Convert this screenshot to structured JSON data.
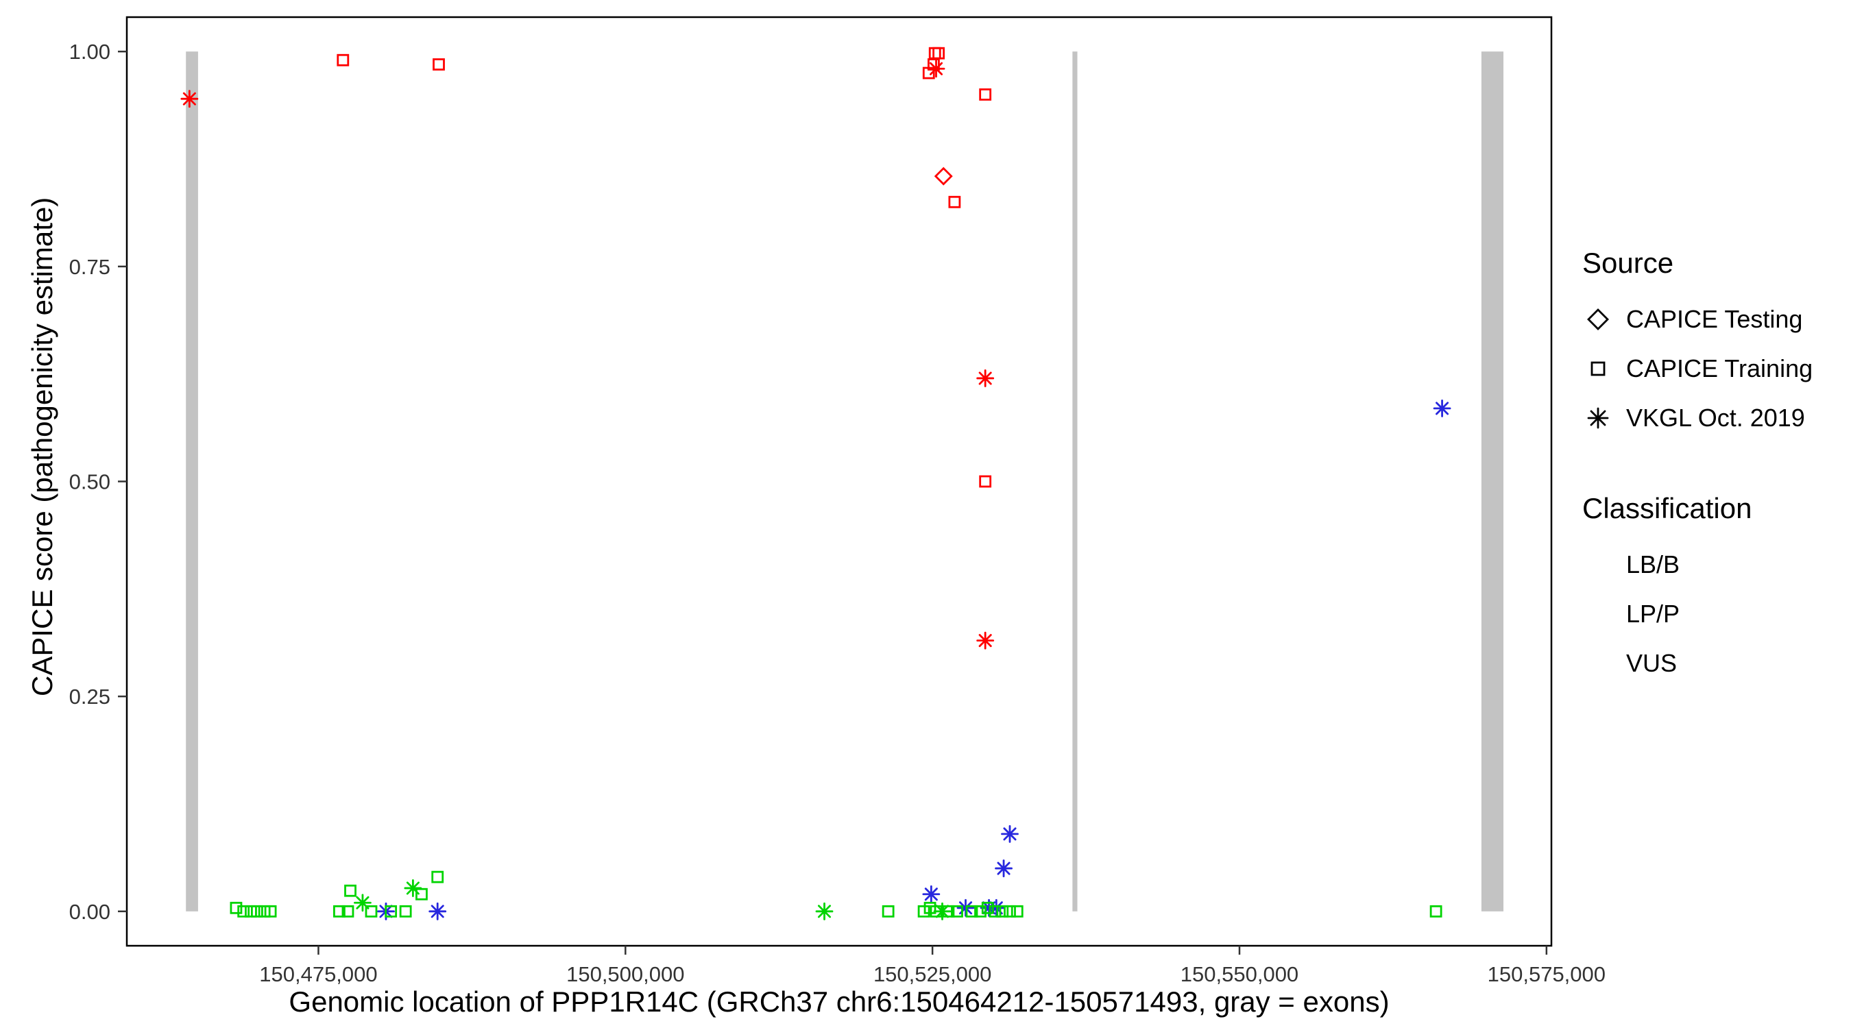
{
  "figure": {
    "background": "#FFFFFF",
    "panel_border": "#000000"
  },
  "chart_data": {
    "type": "scatter",
    "title": "",
    "xlabel": "Genomic location of PPP1R14C (GRCh37 chr6:150464212-150571493, gray = exons)",
    "ylabel": "CAPICE score (pathogenicity estimate)",
    "grid": "none",
    "legend_position": "right",
    "x_domain": [
      150459400,
      150575400
    ],
    "y_domain": [
      -0.04,
      1.04
    ],
    "x_ticks": {
      "values": [
        150475000,
        150500000,
        150525000,
        150550000,
        150575000
      ],
      "labels": [
        "150,475,000",
        "150,500,000",
        "150,525,000",
        "150,550,000",
        "150,575,000"
      ]
    },
    "y_ticks": {
      "values": [
        0,
        0.25,
        0.5,
        0.75,
        1
      ],
      "labels": [
        "0.00",
        "0.25",
        "0.50",
        "0.75",
        "1.00"
      ]
    },
    "exon_color": "#C3C3C3",
    "exons": [
      {
        "start": 150464212,
        "end": 150465200
      },
      {
        "start": 150536400,
        "end": 150536800
      },
      {
        "start": 150569700,
        "end": 150571493
      }
    ],
    "source_symbols": {
      "testing": "diamond",
      "training": "square",
      "vkgl": "asterisk"
    },
    "series": [
      {
        "name": "LP/P",
        "color": "#FF0000",
        "points": [
          {
            "x": 150464500,
            "y": 0.945,
            "s": "vkgl"
          },
          {
            "x": 150477000,
            "y": 0.99,
            "s": "training"
          },
          {
            "x": 150484800,
            "y": 0.985,
            "s": "training"
          },
          {
            "x": 150524700,
            "y": 0.975,
            "s": "training"
          },
          {
            "x": 150525100,
            "y": 0.985,
            "s": "training"
          },
          {
            "x": 150525200,
            "y": 0.998,
            "s": "training"
          },
          {
            "x": 150525500,
            "y": 0.998,
            "s": "training"
          },
          {
            "x": 150525300,
            "y": 0.98,
            "s": "vkgl"
          },
          {
            "x": 150529300,
            "y": 0.95,
            "s": "training"
          },
          {
            "x": 150525900,
            "y": 0.855,
            "s": "testing"
          },
          {
            "x": 150526800,
            "y": 0.825,
            "s": "training"
          },
          {
            "x": 150529300,
            "y": 0.62,
            "s": "vkgl"
          },
          {
            "x": 150529300,
            "y": 0.5,
            "s": "training"
          },
          {
            "x": 150529300,
            "y": 0.315,
            "s": "vkgl"
          }
        ]
      },
      {
        "name": "VUS",
        "color": "#2727DE",
        "points": [
          {
            "x": 150566500,
            "y": 0.585,
            "s": "vkgl"
          },
          {
            "x": 150531300,
            "y": 0.09,
            "s": "vkgl"
          },
          {
            "x": 150530800,
            "y": 0.05,
            "s": "vkgl"
          },
          {
            "x": 150524900,
            "y": 0.02,
            "s": "vkgl"
          },
          {
            "x": 150480500,
            "y": 0.0,
            "s": "vkgl"
          },
          {
            "x": 150484700,
            "y": 0.0,
            "s": "vkgl"
          },
          {
            "x": 150527700,
            "y": 0.004,
            "s": "vkgl"
          },
          {
            "x": 150529600,
            "y": 0.004,
            "s": "vkgl"
          },
          {
            "x": 150530200,
            "y": 0.004,
            "s": "vkgl"
          }
        ]
      },
      {
        "name": "LB/B",
        "color": "#00D400",
        "points": [
          {
            "x": 150468300,
            "y": 0.004,
            "s": "training"
          },
          {
            "x": 150468900,
            "y": 0.0,
            "s": "training"
          },
          {
            "x": 150469500,
            "y": 0.0,
            "s": "training"
          },
          {
            "x": 150470000,
            "y": 0.0,
            "s": "training"
          },
          {
            "x": 150470600,
            "y": 0.0,
            "s": "training"
          },
          {
            "x": 150471100,
            "y": 0.0,
            "s": "training"
          },
          {
            "x": 150476700,
            "y": 0.0,
            "s": "training"
          },
          {
            "x": 150477400,
            "y": 0.0,
            "s": "training"
          },
          {
            "x": 150477600,
            "y": 0.024,
            "s": "training"
          },
          {
            "x": 150478600,
            "y": 0.01,
            "s": "vkgl"
          },
          {
            "x": 150479300,
            "y": 0.0,
            "s": "training"
          },
          {
            "x": 150480900,
            "y": 0.0,
            "s": "training"
          },
          {
            "x": 150482100,
            "y": 0.0,
            "s": "training"
          },
          {
            "x": 150482700,
            "y": 0.027,
            "s": "vkgl"
          },
          {
            "x": 150483400,
            "y": 0.02,
            "s": "training"
          },
          {
            "x": 150484700,
            "y": 0.04,
            "s": "training"
          },
          {
            "x": 150516200,
            "y": 0.0,
            "s": "vkgl"
          },
          {
            "x": 150521400,
            "y": 0.0,
            "s": "training"
          },
          {
            "x": 150524300,
            "y": 0.0,
            "s": "training"
          },
          {
            "x": 150524800,
            "y": 0.004,
            "s": "training"
          },
          {
            "x": 150525300,
            "y": 0.0,
            "s": "training"
          },
          {
            "x": 150525800,
            "y": 0.0,
            "s": "vkgl"
          },
          {
            "x": 150526300,
            "y": 0.0,
            "s": "training"
          },
          {
            "x": 150527000,
            "y": 0.0,
            "s": "training"
          },
          {
            "x": 150528200,
            "y": 0.0,
            "s": "training"
          },
          {
            "x": 150528900,
            "y": 0.0,
            "s": "training"
          },
          {
            "x": 150529500,
            "y": 0.004,
            "s": "training"
          },
          {
            "x": 150530100,
            "y": 0.0,
            "s": "training"
          },
          {
            "x": 150530700,
            "y": 0.0,
            "s": "training"
          },
          {
            "x": 150531300,
            "y": 0.0,
            "s": "training"
          },
          {
            "x": 150531900,
            "y": 0.0,
            "s": "training"
          },
          {
            "x": 150566000,
            "y": 0.0,
            "s": "training"
          }
        ]
      }
    ],
    "legend": {
      "source": {
        "title": "Source",
        "items": [
          {
            "label": "CAPICE Testing",
            "symbol": "diamond"
          },
          {
            "label": "CAPICE Training",
            "symbol": "square"
          },
          {
            "label": "VKGL Oct. 2019",
            "symbol": "asterisk"
          }
        ]
      },
      "classification": {
        "title": "Classification",
        "items": [
          {
            "label": "LB/B",
            "color": "#00D400"
          },
          {
            "label": "LP/P",
            "color": "#FF0000"
          },
          {
            "label": "VUS",
            "color": "#2727DE"
          }
        ]
      }
    }
  }
}
